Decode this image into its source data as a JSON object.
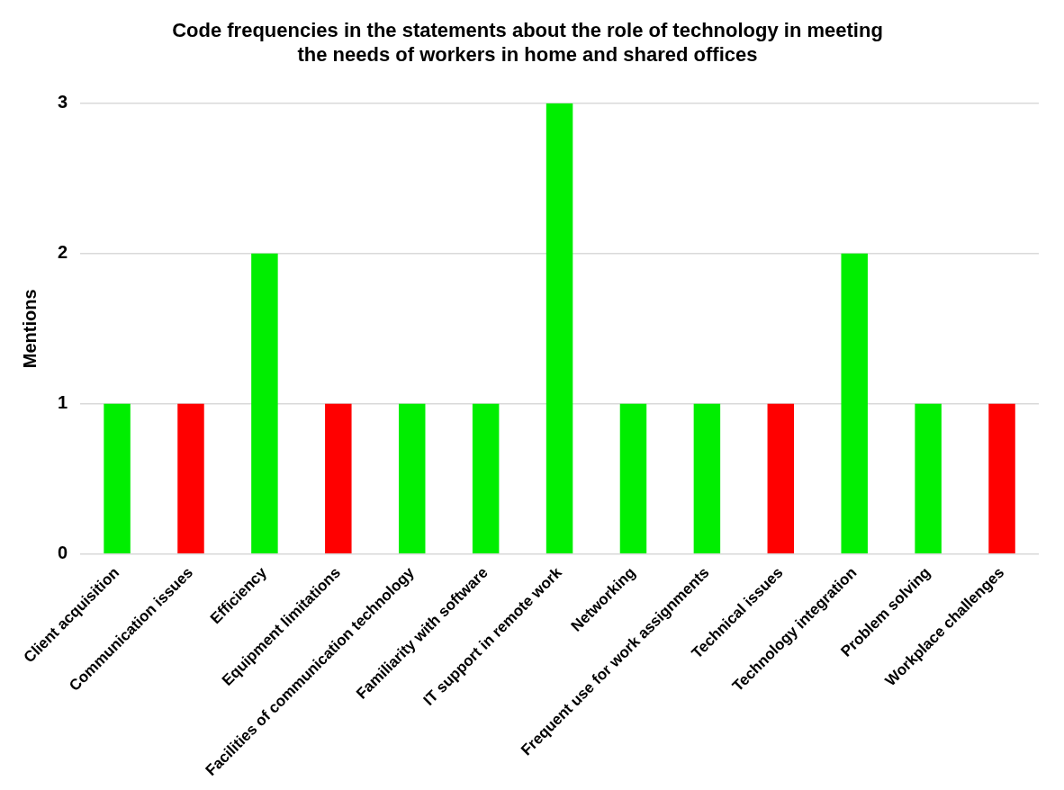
{
  "chart_data": {
    "type": "bar",
    "title": "Code frequencies in the statements about the role of technology in meeting\nthe needs of workers in home and shared offices",
    "ylabel": "Mentions",
    "categories": [
      "Client acquisition",
      "Communication issues",
      "Efficiency",
      "Equipment limitations",
      "Facilities of communication technology",
      "Familiarity with software",
      "IT support in remote work",
      "Networking",
      "Frequent use for work assignments",
      "Technical issues",
      "Technology integration",
      "Problem solving",
      "Workplace challenges"
    ],
    "values": [
      1,
      1,
      2,
      1,
      1,
      1,
      3,
      1,
      1,
      1,
      2,
      1,
      1
    ],
    "colors": [
      "#00ee00",
      "#ff0000",
      "#00ee00",
      "#ff0000",
      "#00ee00",
      "#00ee00",
      "#00ee00",
      "#00ee00",
      "#00ee00",
      "#ff0000",
      "#00ee00",
      "#00ee00",
      "#ff0000"
    ],
    "ylim": [
      0,
      3
    ],
    "yticks": [
      0,
      1,
      2,
      3
    ],
    "grid": "y",
    "legend": false
  }
}
